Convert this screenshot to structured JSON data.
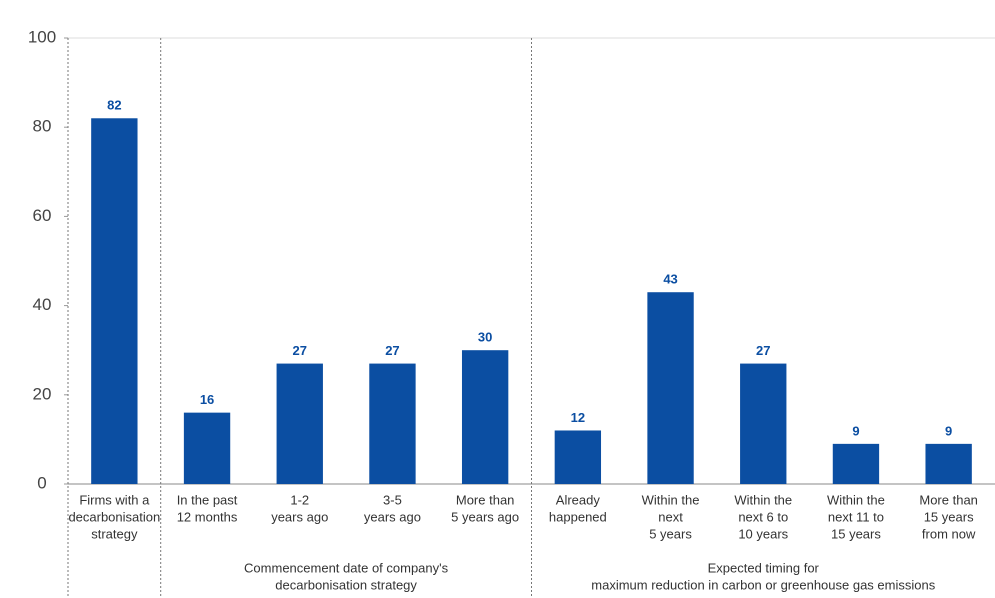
{
  "chart_data": {
    "type": "bar",
    "color": "#0b4ea2",
    "ylim": [
      0,
      100
    ],
    "yticks": [
      0,
      20,
      40,
      60,
      80,
      100
    ],
    "groups": [
      {
        "label": null,
        "categories": [
          [
            "Firms with a",
            "decarbonisation",
            "strategy"
          ]
        ],
        "values": [
          82
        ]
      },
      {
        "label": [
          "Commencement date of company's",
          "decarbonisation strategy"
        ],
        "categories": [
          [
            "In the past",
            "12 months"
          ],
          [
            "1-2",
            "years ago"
          ],
          [
            "3-5",
            "years ago"
          ],
          [
            "More than",
            "5 years ago"
          ]
        ],
        "values": [
          16,
          27,
          27,
          30
        ]
      },
      {
        "label": [
          "Expected timing for",
          "maximum reduction in carbon or greenhouse gas emissions"
        ],
        "categories": [
          [
            "Already",
            "happened"
          ],
          [
            "Within the",
            "next",
            "5 years"
          ],
          [
            "Within the",
            "next 6 to",
            "10 years"
          ],
          [
            "Within the",
            "next 11 to",
            "15 years"
          ],
          [
            "More than",
            "15 years",
            "from now"
          ]
        ],
        "values": [
          12,
          43,
          27,
          9,
          9
        ]
      }
    ]
  }
}
